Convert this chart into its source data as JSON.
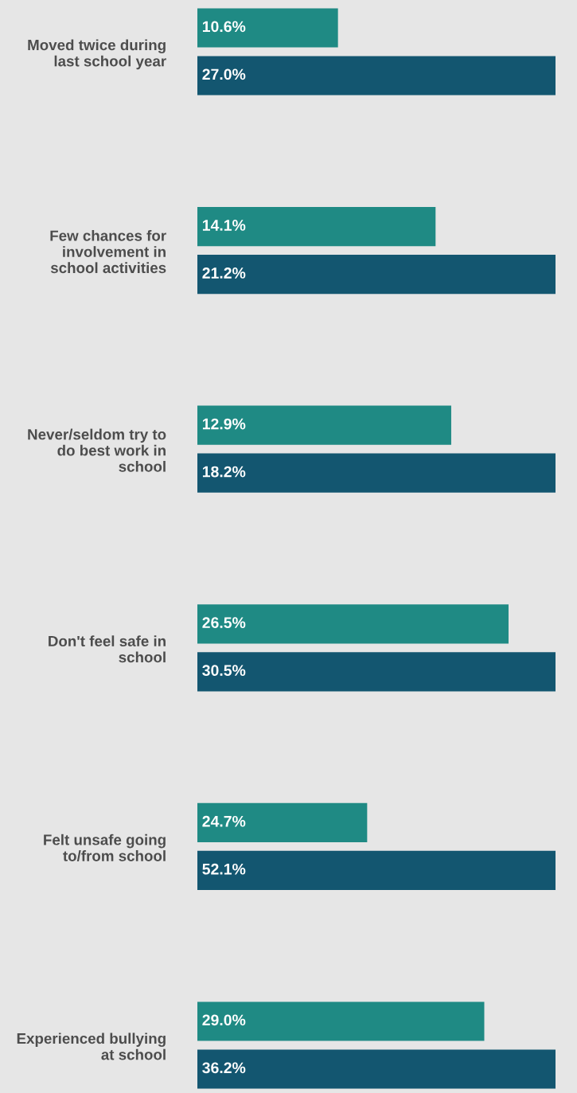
{
  "chart_data": [
    {
      "type": "bar",
      "orientation": "horizontal",
      "categories": [
        "Moved twice during last school year"
      ],
      "series": [
        {
          "color": "#1f8a84",
          "values": [
            10.6
          ],
          "value_labels": [
            "10.6%"
          ]
        },
        {
          "color": "#135670",
          "values": [
            27.0
          ],
          "value_labels": [
            "27.0%"
          ]
        }
      ],
      "tick_labels": "y",
      "grid": false
    },
    {
      "type": "bar",
      "orientation": "horizontal",
      "categories": [
        "Few chances for involvement in school activities"
      ],
      "series": [
        {
          "color": "#1f8a84",
          "values": [
            14.1
          ],
          "value_labels": [
            "14.1%"
          ]
        },
        {
          "color": "#135670",
          "values": [
            21.2
          ],
          "value_labels": [
            "21.2%"
          ]
        }
      ],
      "tick_labels": "y",
      "grid": false
    },
    {
      "type": "bar",
      "orientation": "horizontal",
      "categories": [
        "Never/seldom try to do best work in school"
      ],
      "series": [
        {
          "color": "#1f8a84",
          "values": [
            12.9
          ],
          "value_labels": [
            "12.9%"
          ]
        },
        {
          "color": "#135670",
          "values": [
            18.2
          ],
          "value_labels": [
            "18.2%"
          ]
        }
      ],
      "tick_labels": "y",
      "grid": false
    },
    {
      "type": "bar",
      "orientation": "horizontal",
      "categories": [
        "Don't feel safe in school"
      ],
      "series": [
        {
          "color": "#1f8a84",
          "values": [
            26.5
          ],
          "value_labels": [
            "26.5%"
          ]
        },
        {
          "color": "#135670",
          "values": [
            30.5
          ],
          "value_labels": [
            "30.5%"
          ]
        }
      ],
      "tick_labels": "y",
      "grid": false
    },
    {
      "type": "bar",
      "orientation": "horizontal",
      "categories": [
        "Felt unsafe going to/from school"
      ],
      "series": [
        {
          "color": "#1f8a84",
          "values": [
            24.7
          ],
          "value_labels": [
            "24.7%"
          ]
        },
        {
          "color": "#135670",
          "values": [
            52.1
          ],
          "value_labels": [
            "52.1%"
          ]
        }
      ],
      "tick_labels": "y",
      "grid": false
    },
    {
      "type": "bar",
      "orientation": "horizontal",
      "categories": [
        "Experienced bullying at school"
      ],
      "series": [
        {
          "color": "#1f8a84",
          "values": [
            29.0
          ],
          "value_labels": [
            "29.0%"
          ]
        },
        {
          "color": "#135670",
          "values": [
            36.2
          ],
          "value_labels": [
            "36.2%"
          ]
        }
      ],
      "tick_labels": "y",
      "grid": false
    }
  ]
}
